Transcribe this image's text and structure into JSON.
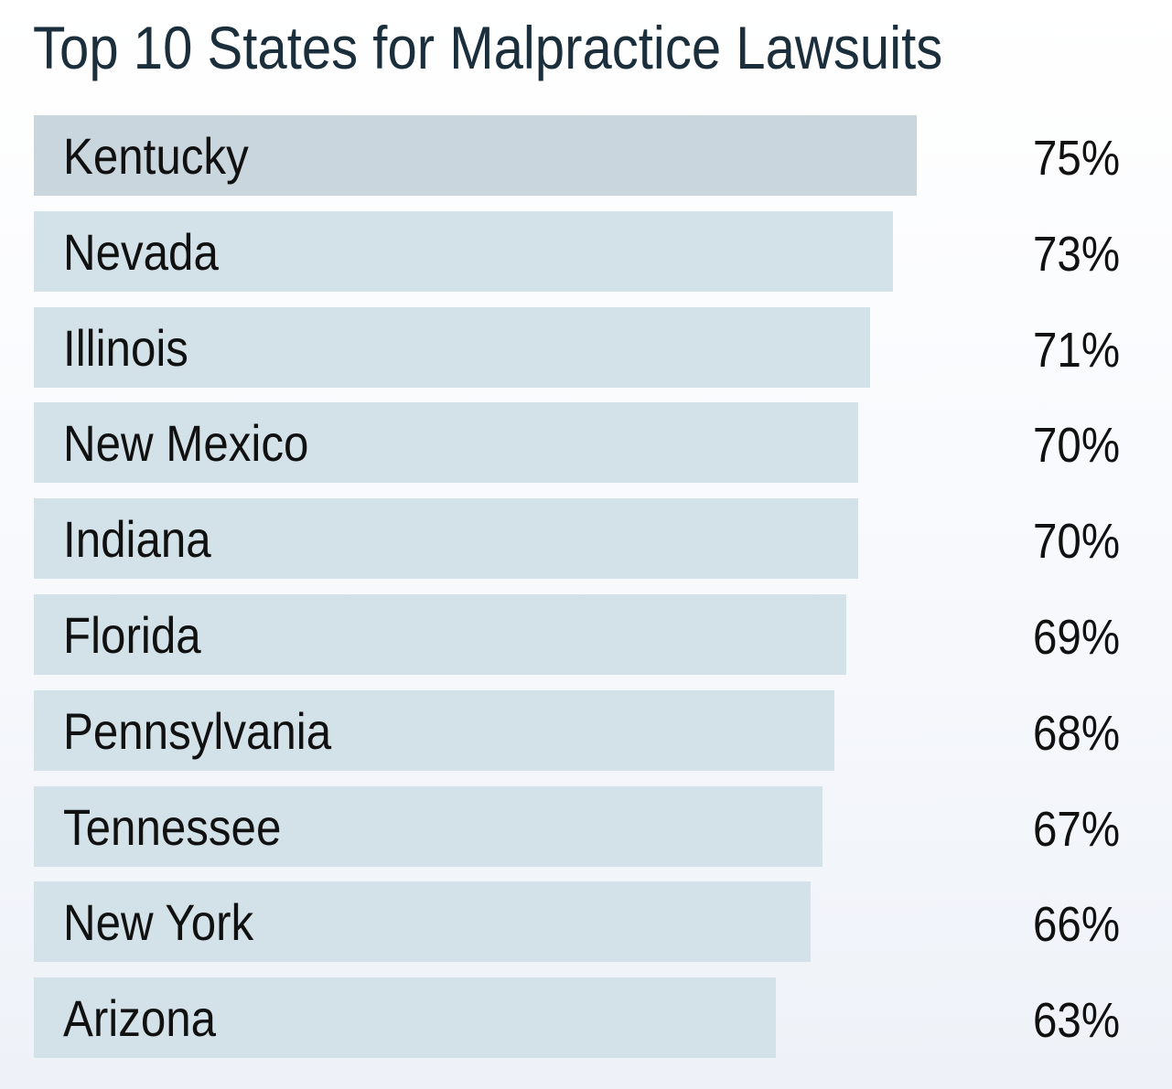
{
  "chart_data": {
    "type": "bar",
    "orientation": "horizontal",
    "title": "Top 10 States for Malpractice Lawsuits",
    "categories": [
      "Kentucky",
      "Nevada",
      "Illinois",
      "New Mexico",
      "Indiana",
      "Florida",
      "Pennsylvania",
      "Tennessee",
      "New York",
      "Arizona"
    ],
    "values": [
      75,
      73,
      71,
      70,
      70,
      69,
      68,
      67,
      66,
      63
    ],
    "value_labels": [
      "75%",
      "73%",
      "71%",
      "70%",
      "70%",
      "69%",
      "68%",
      "67%",
      "66%",
      "63%"
    ],
    "unit": "%",
    "grid": false,
    "legend": "none",
    "colors": {
      "highlight_bar": "#c9d6dd",
      "bar": "#d3e2e8",
      "title": "#1a2e3b",
      "text": "#111111"
    }
  }
}
